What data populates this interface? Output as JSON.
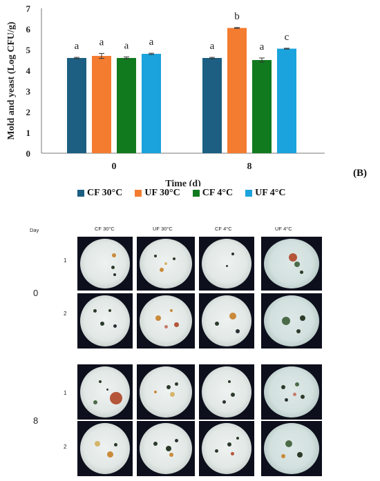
{
  "chart_data": {
    "type": "bar",
    "ylabel": "Mold and yeast (Log CFU/g)",
    "xlabel": "Time (d)",
    "categories": [
      "0",
      "8"
    ],
    "ylim": [
      0,
      7
    ],
    "yticks": [
      "0",
      "1",
      "2",
      "3",
      "4",
      "5",
      "6",
      "7"
    ],
    "grid": false,
    "legend_position": "bottom",
    "series": [
      {
        "name": "CF 30°C",
        "color": "#1c5f82",
        "values": [
          4.6,
          4.6
        ],
        "errors": [
          0.03,
          0.03
        ],
        "letters": [
          "a",
          "a"
        ]
      },
      {
        "name": "UF 30°C",
        "color": "#f47c30",
        "values": [
          4.7,
          6.05
        ],
        "errors": [
          0.12,
          0.02
        ],
        "letters": [
          "a",
          "b"
        ]
      },
      {
        "name": "CF 4°C",
        "color": "#117a1f",
        "values": [
          4.6,
          4.5
        ],
        "errors": [
          0.05,
          0.1
        ],
        "letters": [
          "a",
          "a"
        ]
      },
      {
        "name": "UF 4°C",
        "color": "#1aa3dc",
        "values": [
          4.8,
          5.05
        ],
        "errors": [
          0.03,
          0.02
        ],
        "letters": [
          "a",
          "c"
        ]
      }
    ]
  },
  "panel_label": "(B)",
  "photos": {
    "day_header": "Day",
    "columns": [
      "CF 30°C",
      "UF 30°C",
      "CF 4°C",
      "UF 4°C"
    ],
    "days": [
      {
        "label": "0",
        "replicates": [
          "1",
          "2"
        ]
      },
      {
        "label": "8",
        "replicates": [
          "1",
          "2"
        ]
      }
    ]
  }
}
